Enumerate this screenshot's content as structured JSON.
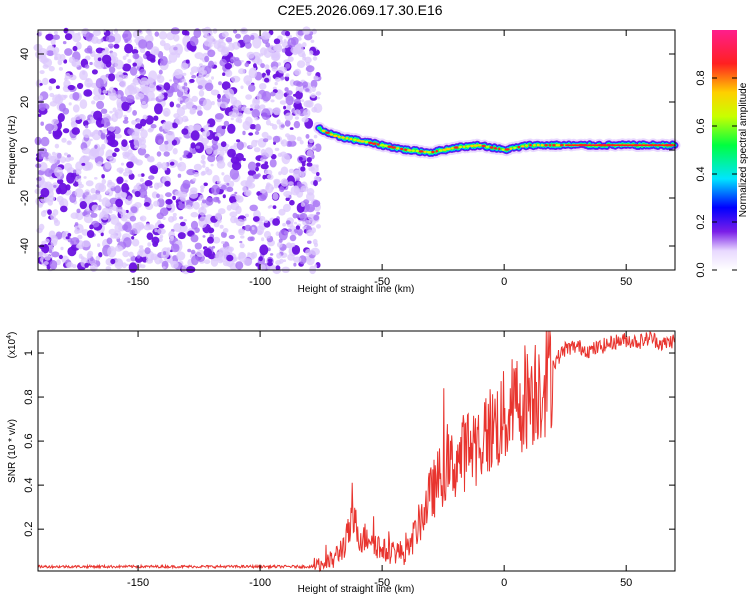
{
  "title": "C2E5.2026.069.17.30.E16",
  "colors": {
    "signal_purple": "#7a1ee8",
    "snr_line": "#e8342e",
    "axis": "#000000",
    "background": "#ffffff"
  },
  "chart_data": [
    {
      "type": "heatmap",
      "name": "spectrogram",
      "title": "C2E5.2026.069.17.30.E16",
      "xlabel": "Height of straight line (km)",
      "ylabel": "Frequency (Hz)",
      "xlim": [
        -191,
        70
      ],
      "ylim": [
        -50,
        50
      ],
      "xticks": [
        -150,
        -100,
        -50,
        0,
        50
      ],
      "yticks": [
        -40,
        -20,
        0,
        20,
        40
      ],
      "noise_region_x": [
        -191,
        -76
      ],
      "signal_track": {
        "x": [
          -76,
          -70,
          -60,
          -50,
          -40,
          -30,
          -20,
          -10,
          0,
          10,
          20,
          30,
          40,
          50,
          60,
          70
        ],
        "freq_hz": [
          9,
          6,
          4,
          2,
          0,
          -1,
          1,
          2,
          0,
          2,
          2,
          2,
          2,
          2,
          2,
          2
        ]
      },
      "colorbar": {
        "label": "Normalized spectral amplitude",
        "ticks": [
          "0.0",
          "0.2",
          "0.4",
          "0.6",
          "0.8"
        ],
        "range": [
          0,
          1
        ]
      }
    },
    {
      "type": "line",
      "name": "snr",
      "xlabel": "Height of straight line (km)",
      "ylabel": "SNR (10 * v/v)",
      "multiplier_label": "(x10",
      "multiplier_exp": "4",
      "multiplier_close": ")",
      "xlim": [
        -191,
        70
      ],
      "ylim": [
        0.01,
        1.1
      ],
      "xticks": [
        -150,
        -100,
        -50,
        0,
        50
      ],
      "yticks": [
        "0.2",
        "0.4",
        "0.6",
        "0.8",
        "1"
      ],
      "series": [
        {
          "name": "SNR",
          "x": [
            -191,
            -150,
            -100,
            -78,
            -70,
            -65,
            -62,
            -58,
            -55,
            -50,
            -45,
            -40,
            -35,
            -30,
            -25,
            -20,
            -15,
            -10,
            -5,
            0,
            5,
            10,
            15,
            20,
            25,
            30,
            35,
            40,
            45,
            50,
            55,
            60,
            65,
            70
          ],
          "y": [
            0.03,
            0.03,
            0.03,
            0.03,
            0.06,
            0.14,
            0.24,
            0.15,
            0.18,
            0.1,
            0.1,
            0.09,
            0.22,
            0.36,
            0.46,
            0.5,
            0.57,
            0.6,
            0.66,
            0.7,
            0.77,
            0.82,
            0.86,
            0.95,
            1.02,
            1.03,
            1.01,
            1.03,
            1.05,
            1.06,
            1.05,
            1.07,
            1.04,
            1.06
          ]
        }
      ]
    }
  ]
}
